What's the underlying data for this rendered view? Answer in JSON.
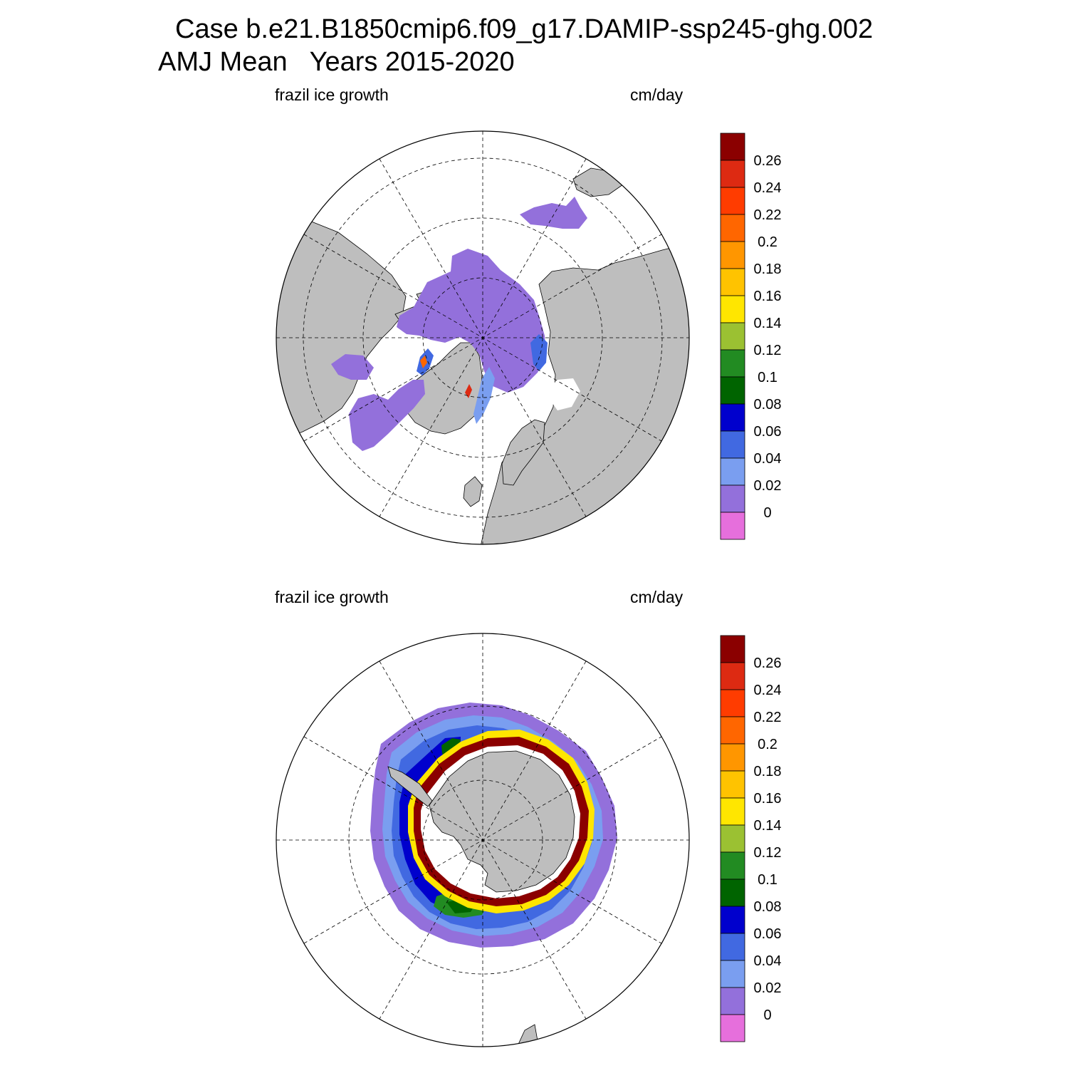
{
  "title_line1": "Case b.e21.B1850cmip6.f09_g17.DAMIP-ssp245-ghg.002",
  "title_line2": "AMJ Mean   Years 2015-2020",
  "panels": [
    {
      "left_label": "frazil ice growth",
      "right_label": "cm/day",
      "hemisphere": "north",
      "colorbar_labels": [
        "0.26",
        "0.24",
        "0.22",
        "0.2",
        "0.18",
        "0.16",
        "0.14",
        "0.12",
        "0.1",
        "0.08",
        "0.06",
        "0.04",
        "0.02",
        "0"
      ]
    },
    {
      "left_label": "frazil ice growth",
      "right_label": "cm/day",
      "hemisphere": "south",
      "colorbar_labels": [
        "0.26",
        "0.24",
        "0.22",
        "0.2",
        "0.18",
        "0.16",
        "0.14",
        "0.12",
        "0.1",
        "0.08",
        "0.06",
        "0.04",
        "0.02",
        "0"
      ]
    }
  ],
  "colors": {
    "land": "#bebebe",
    "ocean": "#ffffff",
    "colorbar_top_to_bottom": [
      "#8b0000",
      "#dd2a12",
      "#ff3c00",
      "#ff6600",
      "#ff9600",
      "#ffc300",
      "#ffe600",
      "#9bc132",
      "#228b22",
      "#006400",
      "#0000cd",
      "#4169e1",
      "#7a9ef0",
      "#9370db",
      "#e66fdc"
    ]
  }
}
